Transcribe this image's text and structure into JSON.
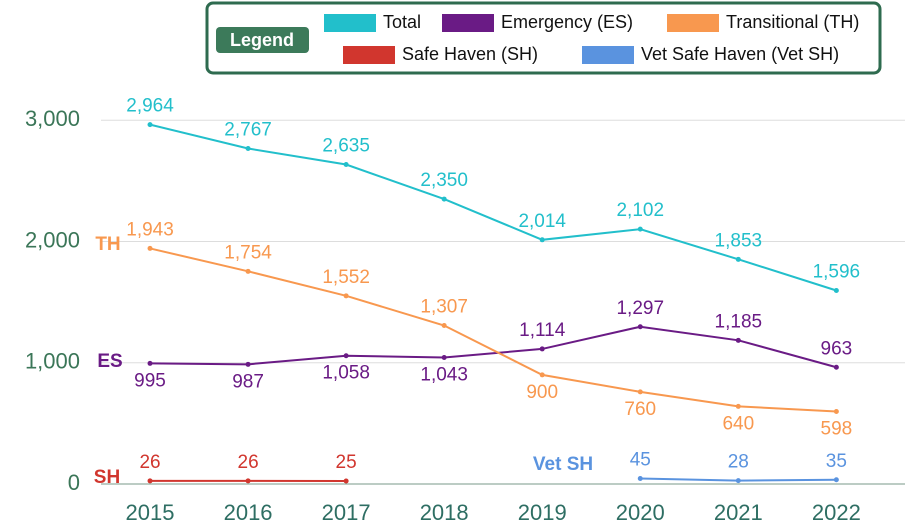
{
  "chart_data": {
    "type": "line",
    "legend_title": "Legend",
    "legend": "top-right",
    "x": [
      2015,
      2016,
      2017,
      2018,
      2019,
      2020,
      2021,
      2022
    ],
    "xlim": [
      2014.5,
      2022.7
    ],
    "xticks": [
      2015,
      2016,
      2017,
      2018,
      2019,
      2020,
      2021,
      2022
    ],
    "ylim": [
      0,
      3200
    ],
    "yticks": [
      {
        "value": 0,
        "label": "0"
      },
      {
        "value": 1000,
        "label": "1,000"
      },
      {
        "value": 2000,
        "label": "2,000"
      },
      {
        "value": 3000,
        "label": "3,000"
      }
    ],
    "grid": true,
    "series": [
      {
        "name": "Total",
        "color": "#22bfcb",
        "values": [
          2964,
          2767,
          2635,
          2350,
          2014,
          2102,
          1853,
          1596
        ],
        "value_labels": [
          "2,964",
          "2,767",
          "2,635",
          "2,350",
          "2,014",
          "2,102",
          "1,853",
          "1,596"
        ]
      },
      {
        "name": "Emergency (ES)",
        "color": "#6a1b85",
        "values": [
          995,
          987,
          1058,
          1043,
          1114,
          1297,
          1185,
          963
        ],
        "value_labels": [
          "995",
          "987",
          "1,058",
          "1,043",
          "1,114",
          "1,297",
          "1,185",
          "963"
        ]
      },
      {
        "name": "Transitional (TH)",
        "color": "#f8984f",
        "values": [
          1943,
          1754,
          1552,
          1307,
          900,
          760,
          640,
          598
        ],
        "value_labels": [
          "1,943",
          "1,754",
          "1,552",
          "1,307",
          "900",
          "760",
          "640",
          "598"
        ]
      },
      {
        "name": "Safe Haven (SH)",
        "color": "#d1362e",
        "values": [
          26,
          26,
          25,
          null,
          null,
          null,
          null,
          null
        ]
      },
      {
        "name": "Vet Safe Haven (Vet SH)",
        "color": "#5a93df",
        "values": [
          null,
          null,
          null,
          null,
          null,
          45,
          28,
          35
        ]
      }
    ],
    "annotations": [
      "TH",
      "ES",
      "SH",
      "Vet SH"
    ]
  }
}
